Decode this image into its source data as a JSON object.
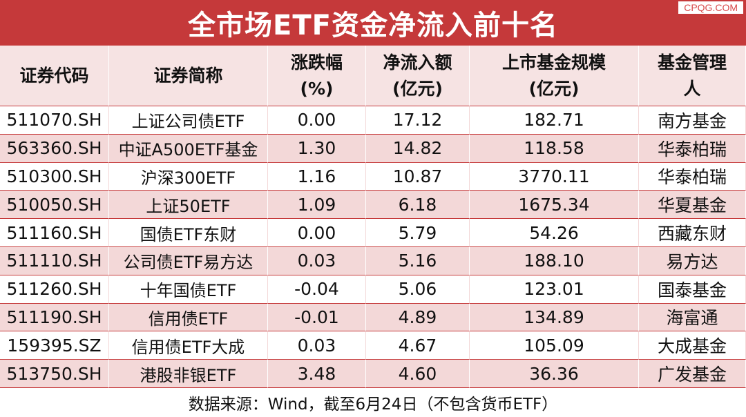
{
  "header": {
    "title": "全市场ETF资金净流入前十名",
    "watermark": "CPQG.COM"
  },
  "table": {
    "columns": [
      [
        "证券代码"
      ],
      [
        "证券简称"
      ],
      [
        "涨跌幅",
        "(%)"
      ],
      [
        "净流入额",
        "(亿元)"
      ],
      [
        "上市基金规模",
        "(亿元)"
      ],
      [
        "基金管理",
        "人"
      ]
    ],
    "rows": [
      [
        "511070.SH",
        "上证公司债ETF",
        "0.00",
        "17.12",
        "182.71",
        "南方基金"
      ],
      [
        "563360.SH",
        "中证A500ETF基金",
        "1.30",
        "14.82",
        "118.58",
        "华泰柏瑞"
      ],
      [
        "510300.SH",
        "沪深300ETF",
        "1.16",
        "10.87",
        "3770.11",
        "华泰柏瑞"
      ],
      [
        "510050.SH",
        "上证50ETF",
        "1.09",
        "6.18",
        "1675.34",
        "华夏基金"
      ],
      [
        "511160.SH",
        "国债ETF东财",
        "0.00",
        "5.79",
        "54.26",
        "西藏东财"
      ],
      [
        "511110.SH",
        "公司债ETF易方达",
        "0.03",
        "5.16",
        "188.10",
        "易方达"
      ],
      [
        "511260.SH",
        "十年国债ETF",
        "-0.04",
        "5.06",
        "123.01",
        "国泰基金"
      ],
      [
        "511190.SH",
        "信用债ETF",
        "-0.01",
        "4.89",
        "134.89",
        "海富通"
      ],
      [
        "159395.SZ",
        "信用债ETF大成",
        "0.03",
        "4.67",
        "105.09",
        "大成基金"
      ],
      [
        "513750.SH",
        "港股非银ETF",
        "3.48",
        "4.60",
        "36.36",
        "广发基金"
      ]
    ]
  },
  "footer": {
    "source": "数据来源：Wind，截至6月24日（不包含货币ETF）"
  }
}
